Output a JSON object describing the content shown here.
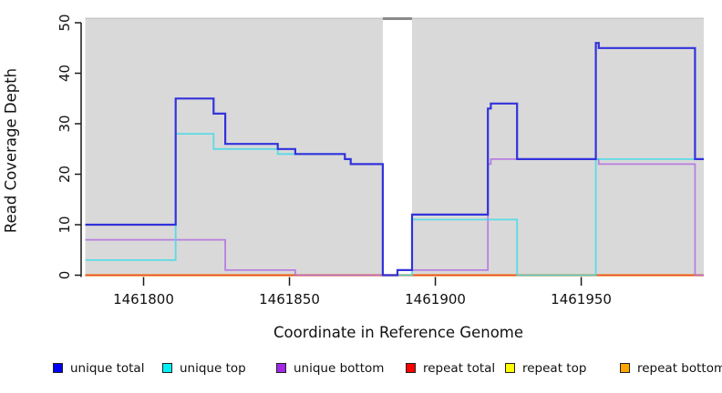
{
  "chart_data": {
    "type": "line",
    "subtype": "step-coverage",
    "title": "",
    "xlabel": "Coordinate in Reference Genome",
    "ylabel": "Read Coverage Depth",
    "xlim": [
      1461780,
      1461992
    ],
    "ylim": [
      0,
      51
    ],
    "x_ticks": [
      "1461800",
      "1461850",
      "1461900",
      "1461950"
    ],
    "x_tick_values": [
      1461800,
      1461850,
      1461900,
      1461950
    ],
    "y_ticks": [
      "0",
      "10",
      "20",
      "30",
      "40",
      "50"
    ],
    "y_tick_values": [
      0,
      10,
      20,
      30,
      40,
      50
    ],
    "grid": false,
    "plot_background": "#d9d9d9",
    "shaded_regions": [
      {
        "from": 1461780,
        "to": 1461882,
        "fill": "#d9d9d9"
      },
      {
        "from": 1461892,
        "to": 1461992,
        "fill": "#d9d9d9"
      }
    ],
    "gap_region": {
      "from": 1461882,
      "to": 1461892,
      "fill": "#ffffff",
      "top_bar_color": "#8a8a8a"
    },
    "region_top_edge_color": "#c6c6c6",
    "series": [
      {
        "name": "repeat bottom",
        "color": "#FF9F2A",
        "legend_color": "#FFA500",
        "width": 2.4,
        "opacity": 1,
        "points": [
          [
            1461780,
            0
          ],
          [
            1461992,
            0
          ]
        ]
      },
      {
        "name": "repeat top",
        "color": "#F5ED3F",
        "legend_color": "#FFFF00",
        "width": 1.6,
        "opacity": 1,
        "points": [
          [
            1461780,
            0
          ],
          [
            1461992,
            0
          ]
        ]
      },
      {
        "name": "repeat total",
        "color": "#E03030",
        "legend_color": "#FF0000",
        "width": 1.4,
        "opacity": 0.85,
        "points": [
          [
            1461780,
            0
          ],
          [
            1461992,
            0
          ]
        ]
      },
      {
        "name": "unique bottom",
        "color": "#B26EE2",
        "legend_color": "#A228E8",
        "width": 1.8,
        "opacity": 0.85,
        "points": [
          [
            1461780,
            7
          ],
          [
            1461828,
            1
          ],
          [
            1461852,
            0
          ],
          [
            1461887,
            1
          ],
          [
            1461918,
            22
          ],
          [
            1461919,
            23
          ],
          [
            1461956,
            22
          ],
          [
            1461989,
            0
          ],
          [
            1461992,
            0
          ]
        ]
      },
      {
        "name": "unique top",
        "color": "#45D9E8",
        "legend_color": "#00F0F5",
        "width": 1.8,
        "opacity": 0.85,
        "points": [
          [
            1461780,
            3
          ],
          [
            1461811,
            28
          ],
          [
            1461824,
            25
          ],
          [
            1461846,
            24
          ],
          [
            1461869,
            23
          ],
          [
            1461871,
            22
          ],
          [
            1461882,
            0
          ],
          [
            1461892,
            11
          ],
          [
            1461928,
            0
          ],
          [
            1461955,
            23
          ],
          [
            1461992,
            23
          ]
        ]
      },
      {
        "name": "unique total",
        "color": "#3232DC",
        "legend_color": "#0000F0",
        "width": 2.2,
        "opacity": 1,
        "points": [
          [
            1461780,
            10
          ],
          [
            1461811,
            35
          ],
          [
            1461824,
            32
          ],
          [
            1461828,
            26
          ],
          [
            1461846,
            25
          ],
          [
            1461852,
            24
          ],
          [
            1461869,
            23
          ],
          [
            1461871,
            22
          ],
          [
            1461882,
            0
          ],
          [
            1461887,
            1
          ],
          [
            1461892,
            12
          ],
          [
            1461918,
            33
          ],
          [
            1461919,
            34
          ],
          [
            1461928,
            23
          ],
          [
            1461955,
            46
          ],
          [
            1461956,
            45
          ],
          [
            1461989,
            23
          ],
          [
            1461992,
            23
          ]
        ]
      }
    ],
    "legend": [
      {
        "label": "unique total",
        "color": "#0000F0"
      },
      {
        "label": "unique top",
        "color": "#00F0F5"
      },
      {
        "label": "unique bottom",
        "color": "#A228E8"
      },
      {
        "label": "repeat total",
        "color": "#FF0000"
      },
      {
        "label": "repeat top",
        "color": "#FFFF00"
      },
      {
        "label": "repeat bottom",
        "color": "#FFA500"
      }
    ],
    "legend_position": "bottom"
  }
}
